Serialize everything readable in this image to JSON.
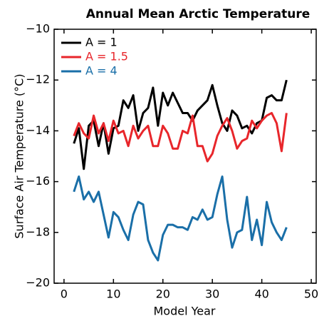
{
  "chart_data": {
    "type": "line",
    "title": "Annual Mean Arctic Temperature",
    "x_label": "Model Year",
    "y_label": "Surface Air Temperature (°C)",
    "x": [
      2,
      3,
      4,
      5,
      6,
      7,
      8,
      9,
      10,
      11,
      12,
      13,
      14,
      15,
      16,
      17,
      18,
      19,
      20,
      21,
      22,
      23,
      24,
      25,
      26,
      27,
      28,
      29,
      30,
      31,
      32,
      33,
      34,
      35,
      36,
      37,
      38,
      39,
      40,
      41,
      42,
      43,
      44,
      45
    ],
    "series": [
      {
        "name": "A = 1",
        "color": "#000000",
        "values": [
          -14.5,
          -13.9,
          -15.5,
          -13.8,
          -13.6,
          -14.6,
          -13.7,
          -14.9,
          -13.9,
          -13.8,
          -12.8,
          -13.1,
          -12.6,
          -14.0,
          -13.3,
          -13.1,
          -12.3,
          -13.8,
          -12.5,
          -13.0,
          -12.5,
          -12.9,
          -13.3,
          -13.3,
          -13.6,
          -13.2,
          -13.0,
          -12.8,
          -12.2,
          -13.0,
          -13.7,
          -14.0,
          -13.2,
          -13.4,
          -13.9,
          -13.8,
          -14.1,
          -13.7,
          -13.6,
          -12.7,
          -12.6,
          -12.8,
          -12.8,
          -12.0
        ]
      },
      {
        "name": "A = 1.5",
        "color": "#e8262b",
        "values": [
          -14.2,
          -13.7,
          -14.1,
          -14.3,
          -13.4,
          -14.1,
          -13.7,
          -14.4,
          -13.6,
          -14.1,
          -14.0,
          -14.6,
          -13.8,
          -14.3,
          -14.0,
          -13.8,
          -14.6,
          -14.6,
          -13.8,
          -14.1,
          -14.7,
          -14.7,
          -14.0,
          -14.1,
          -13.4,
          -14.6,
          -14.6,
          -15.2,
          -14.9,
          -14.2,
          -13.8,
          -13.5,
          -14.0,
          -14.7,
          -14.4,
          -14.3,
          -13.6,
          -13.9,
          -13.6,
          -13.4,
          -13.3,
          -13.7,
          -14.8,
          -13.3
        ]
      },
      {
        "name": "A = 4",
        "color": "#1a6fa8",
        "values": [
          -16.4,
          -15.8,
          -16.7,
          -16.4,
          -16.8,
          -16.4,
          -17.3,
          -18.2,
          -17.2,
          -17.4,
          -17.9,
          -18.3,
          -17.3,
          -16.8,
          -16.9,
          -18.3,
          -18.8,
          -19.1,
          -18.1,
          -17.7,
          -17.7,
          -17.8,
          -17.8,
          -17.9,
          -17.4,
          -17.5,
          -17.1,
          -17.5,
          -17.4,
          -16.5,
          -15.8,
          -17.5,
          -18.6,
          -18.0,
          -17.9,
          -16.6,
          -18.3,
          -17.5,
          -18.5,
          -16.8,
          -17.6,
          -18.0,
          -18.3,
          -17.8
        ]
      }
    ],
    "xlim": [
      -2,
      51
    ],
    "xticks": [
      0,
      10,
      20,
      30,
      40,
      50
    ],
    "ylim": [
      -20,
      -10
    ],
    "yticks": [
      {
        "value": -20,
        "label": "−20"
      },
      {
        "value": -18,
        "label": "−18"
      },
      {
        "value": -16,
        "label": "−16"
      },
      {
        "value": -14,
        "label": "−14"
      },
      {
        "value": -12,
        "label": "−12"
      },
      {
        "value": -10,
        "label": "−10"
      }
    ],
    "legend": "upper left"
  }
}
